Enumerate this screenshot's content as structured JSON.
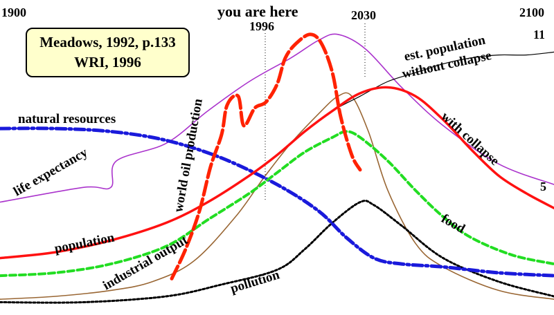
{
  "chart_data": {
    "type": "line",
    "x_range": [
      1900,
      2100
    ],
    "y_range": [
      0,
      1
    ],
    "grid": false,
    "legend": "none",
    "year_labels": {
      "start": "1900",
      "now": "1996",
      "peak": "2030",
      "end": "2100",
      "now_caption": "you are here"
    },
    "source": [
      "Meadows, 1992, p.133",
      "WRI, 1996"
    ],
    "series_labels": {
      "natural_resources": "natural resources",
      "life_expectancy": "life expectancy",
      "world_oil_production": "world oil production",
      "population": "population",
      "industrial_output": "industrial output",
      "pollution": "pollution",
      "food": "food",
      "with_collapse": "with collapse",
      "est_population_1": "est. population",
      "est_population_2": "without collapse"
    },
    "end_values": {
      "with_collapse": "5",
      "without_collapse": "11"
    },
    "series": [
      {
        "key": "natural_resources",
        "color": "#1a1adb",
        "style": "dashdot",
        "points": [
          [
            1900,
            0.61
          ],
          [
            1920,
            0.61
          ],
          [
            1940,
            0.6
          ],
          [
            1960,
            0.57
          ],
          [
            1980,
            0.51
          ],
          [
            2000,
            0.42
          ],
          [
            2015,
            0.33
          ],
          [
            2025,
            0.24
          ],
          [
            2035,
            0.17
          ],
          [
            2045,
            0.15
          ],
          [
            2060,
            0.14
          ],
          [
            2080,
            0.12
          ],
          [
            2100,
            0.11
          ]
        ]
      },
      {
        "key": "life_expectancy",
        "color": "#aa33cc",
        "style": "solid",
        "points": [
          [
            1900,
            0.36
          ],
          [
            1930,
            0.41
          ],
          [
            1940,
            0.41
          ],
          [
            1942,
            0.5
          ],
          [
            1960,
            0.56
          ],
          [
            1975,
            0.67
          ],
          [
            1990,
            0.77
          ],
          [
            2005,
            0.85
          ],
          [
            2015,
            0.91
          ],
          [
            2022,
            0.93
          ],
          [
            2032,
            0.88
          ],
          [
            2045,
            0.75
          ],
          [
            2060,
            0.62
          ],
          [
            2080,
            0.49
          ],
          [
            2100,
            0.42
          ]
        ]
      },
      {
        "key": "world_oil_production",
        "color": "#ff2200",
        "style": "longdash",
        "points": [
          [
            1962,
            0.1
          ],
          [
            1967,
            0.2
          ],
          [
            1972,
            0.33
          ],
          [
            1976,
            0.48
          ],
          [
            1980,
            0.59
          ],
          [
            1982,
            0.69
          ],
          [
            1986,
            0.72
          ],
          [
            1988,
            0.62
          ],
          [
            1992,
            0.68
          ],
          [
            1996,
            0.7
          ],
          [
            2000,
            0.76
          ],
          [
            2003,
            0.85
          ],
          [
            2007,
            0.9
          ],
          [
            2012,
            0.93
          ],
          [
            2016,
            0.9
          ],
          [
            2020,
            0.8
          ],
          [
            2023,
            0.65
          ],
          [
            2027,
            0.52
          ],
          [
            2030,
            0.47
          ]
        ]
      },
      {
        "key": "population",
        "color": "#ff1111",
        "style": "solid",
        "points": [
          [
            1900,
            0.17
          ],
          [
            1920,
            0.19
          ],
          [
            1940,
            0.23
          ],
          [
            1960,
            0.29
          ],
          [
            1975,
            0.36
          ],
          [
            1990,
            0.45
          ],
          [
            2000,
            0.52
          ],
          [
            2010,
            0.6
          ],
          [
            2020,
            0.67
          ],
          [
            2030,
            0.73
          ],
          [
            2040,
            0.75
          ],
          [
            2050,
            0.72
          ],
          [
            2060,
            0.64
          ],
          [
            2070,
            0.54
          ],
          [
            2080,
            0.45
          ],
          [
            2090,
            0.39
          ],
          [
            2100,
            0.34
          ]
        ]
      },
      {
        "key": "without_collapse",
        "color": "#000000",
        "style": "thin",
        "points": [
          [
            2010,
            0.6
          ],
          [
            2020,
            0.67
          ],
          [
            2030,
            0.72
          ],
          [
            2040,
            0.77
          ],
          [
            2050,
            0.8
          ],
          [
            2060,
            0.83
          ],
          [
            2070,
            0.85
          ],
          [
            2080,
            0.86
          ],
          [
            2090,
            0.86
          ],
          [
            2100,
            0.87
          ]
        ]
      },
      {
        "key": "food",
        "color": "#22dd22",
        "style": "dashed",
        "points": [
          [
            1900,
            0.11
          ],
          [
            1920,
            0.12
          ],
          [
            1940,
            0.15
          ],
          [
            1960,
            0.21
          ],
          [
            1975,
            0.3
          ],
          [
            1990,
            0.39
          ],
          [
            2000,
            0.46
          ],
          [
            2010,
            0.53
          ],
          [
            2020,
            0.58
          ],
          [
            2025,
            0.6
          ],
          [
            2030,
            0.58
          ],
          [
            2040,
            0.5
          ],
          [
            2050,
            0.4
          ],
          [
            2060,
            0.31
          ],
          [
            2070,
            0.24
          ],
          [
            2085,
            0.18
          ],
          [
            2100,
            0.15
          ]
        ]
      },
      {
        "key": "industrial_output",
        "color": "#996633",
        "style": "solid",
        "points": [
          [
            1900,
            0.03
          ],
          [
            1920,
            0.04
          ],
          [
            1940,
            0.06
          ],
          [
            1955,
            0.09
          ],
          [
            1970,
            0.16
          ],
          [
            1985,
            0.31
          ],
          [
            1995,
            0.44
          ],
          [
            2005,
            0.56
          ],
          [
            2015,
            0.66
          ],
          [
            2022,
            0.72
          ],
          [
            2027,
            0.72
          ],
          [
            2033,
            0.6
          ],
          [
            2040,
            0.4
          ],
          [
            2050,
            0.22
          ],
          [
            2060,
            0.14
          ],
          [
            2080,
            0.06
          ],
          [
            2100,
            0.03
          ]
        ]
      },
      {
        "key": "pollution",
        "color": "#000000",
        "style": "dotted",
        "points": [
          [
            1900,
            0.02
          ],
          [
            1930,
            0.02
          ],
          [
            1960,
            0.04
          ],
          [
            1980,
            0.08
          ],
          [
            2000,
            0.13
          ],
          [
            2010,
            0.2
          ],
          [
            2020,
            0.29
          ],
          [
            2030,
            0.36
          ],
          [
            2035,
            0.35
          ],
          [
            2045,
            0.28
          ],
          [
            2060,
            0.17
          ],
          [
            2080,
            0.09
          ],
          [
            2100,
            0.04
          ]
        ]
      }
    ]
  }
}
